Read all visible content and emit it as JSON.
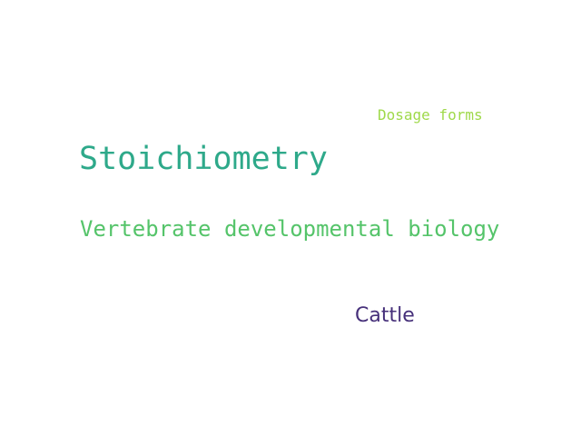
{
  "words": [
    {
      "text": "Dosage forms",
      "color": "#9fd94a"
    },
    {
      "text": "Stoichiometry",
      "color": "#2ea98a"
    },
    {
      "text": "Vertebrate developmental biology",
      "color": "#55c46a"
    },
    {
      "text": "Cattle",
      "color": "#46307a"
    }
  ]
}
